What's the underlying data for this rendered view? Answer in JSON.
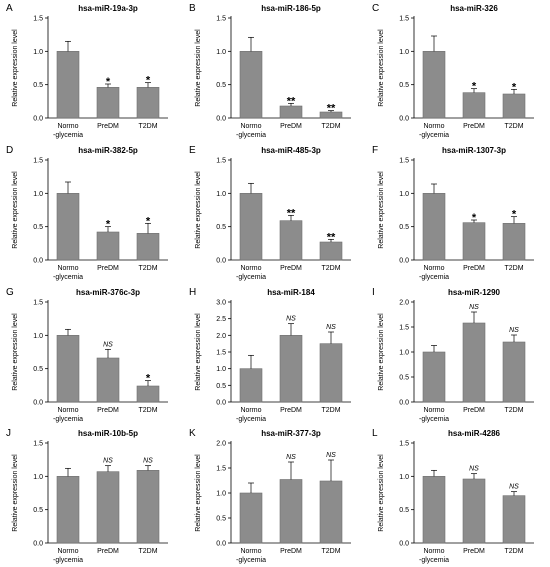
{
  "colors": {
    "bar": "#8c8c8c",
    "bar_stroke": "#6e6e6e",
    "axis": "#000000",
    "text": "#000000"
  },
  "chart_data": [
    {
      "panel": "A",
      "type": "bar",
      "title": "hsa-miR-19a-3p",
      "ylabel": "Relative expression level",
      "ylim": [
        0,
        1.5
      ],
      "yticks": [
        "0.0",
        "0.5",
        "1.0",
        "1.5"
      ],
      "categories": [
        [
          "Normo",
          "-glycemia"
        ],
        [
          "PreDM"
        ],
        [
          "T2DM"
        ]
      ],
      "values": [
        1.0,
        0.46,
        0.46
      ],
      "errors": [
        0.15,
        0.05,
        0.07
      ],
      "annotations": [
        "",
        "*",
        "*"
      ]
    },
    {
      "panel": "B",
      "type": "bar",
      "title": "hsa-miR-186-5p",
      "ylabel": "Relative expression level",
      "ylim": [
        0,
        1.5
      ],
      "yticks": [
        "0.0",
        "0.5",
        "1.0",
        "1.5"
      ],
      "categories": [
        [
          "Normo",
          "-glycemia"
        ],
        [
          "PreDM"
        ],
        [
          "T2DM"
        ]
      ],
      "values": [
        1.0,
        0.18,
        0.09
      ],
      "errors": [
        0.21,
        0.04,
        0.02
      ],
      "annotations": [
        "",
        "**",
        "**"
      ]
    },
    {
      "panel": "C",
      "type": "bar",
      "title": "hsa-miR-326",
      "ylabel": "Relative expression level",
      "ylim": [
        0,
        1.5
      ],
      "yticks": [
        "0.0",
        "0.5",
        "1.0",
        "1.5"
      ],
      "categories": [
        [
          "Normo",
          "-glycemia"
        ],
        [
          "PreDM"
        ],
        [
          "T2DM"
        ]
      ],
      "values": [
        1.0,
        0.38,
        0.36
      ],
      "errors": [
        0.23,
        0.06,
        0.07
      ],
      "annotations": [
        "",
        "*",
        "*"
      ]
    },
    {
      "panel": "D",
      "type": "bar",
      "title": "hsa-miR-382-5p",
      "ylabel": "Relative expression level",
      "ylim": [
        0,
        1.5
      ],
      "yticks": [
        "0.0",
        "0.5",
        "1.0",
        "1.5"
      ],
      "categories": [
        [
          "Normo",
          "-glycemia"
        ],
        [
          "PreDM"
        ],
        [
          "T2DM"
        ]
      ],
      "values": [
        1.0,
        0.42,
        0.4
      ],
      "errors": [
        0.17,
        0.08,
        0.15
      ],
      "annotations": [
        "",
        "*",
        "*"
      ]
    },
    {
      "panel": "E",
      "type": "bar",
      "title": "hsa-miR-485-3p",
      "ylabel": "Relative expression level",
      "ylim": [
        0,
        1.5
      ],
      "yticks": [
        "0.0",
        "0.5",
        "1.0",
        "1.5"
      ],
      "categories": [
        [
          "Normo",
          "-glycemia"
        ],
        [
          "PreDM"
        ],
        [
          "T2DM"
        ]
      ],
      "values": [
        1.0,
        0.59,
        0.27
      ],
      "errors": [
        0.15,
        0.08,
        0.04
      ],
      "annotations": [
        "",
        "**",
        "**"
      ]
    },
    {
      "panel": "F",
      "type": "bar",
      "title": "hsa-miR-1307-3p",
      "ylabel": "Relative expression level",
      "ylim": [
        0,
        1.5
      ],
      "yticks": [
        "0.0",
        "0.5",
        "1.0",
        "1.5"
      ],
      "categories": [
        [
          "Normo",
          "-glycemia"
        ],
        [
          "PreDM"
        ],
        [
          "T2DM"
        ]
      ],
      "values": [
        1.0,
        0.56,
        0.55
      ],
      "errors": [
        0.14,
        0.04,
        0.1
      ],
      "annotations": [
        "",
        "*",
        "*"
      ]
    },
    {
      "panel": "G",
      "type": "bar",
      "title": "hsa-miR-376c-3p",
      "ylabel": "Relative expression level",
      "ylim": [
        0,
        1.5
      ],
      "yticks": [
        "0.0",
        "0.5",
        "1.0",
        "1.5"
      ],
      "categories": [
        [
          "Normo",
          "-glycemia"
        ],
        [
          "PreDM"
        ],
        [
          "T2DM"
        ]
      ],
      "values": [
        1.0,
        0.66,
        0.24
      ],
      "errors": [
        0.09,
        0.13,
        0.08
      ],
      "annotations": [
        "",
        "NS",
        "*"
      ]
    },
    {
      "panel": "H",
      "type": "bar",
      "title": "hsa-miR-184",
      "ylabel": "Relative expression level",
      "ylim": [
        0,
        3.0
      ],
      "yticks": [
        "0.0",
        "0.5",
        "1.0",
        "1.5",
        "2.0",
        "2.5",
        "3.0"
      ],
      "categories": [
        [
          "Normo",
          "-glycemia"
        ],
        [
          "PreDM"
        ],
        [
          "T2DM"
        ]
      ],
      "values": [
        1.0,
        2.0,
        1.75
      ],
      "errors": [
        0.4,
        0.35,
        0.35
      ],
      "annotations": [
        "",
        "NS",
        "NS"
      ]
    },
    {
      "panel": "I",
      "type": "bar",
      "title": "hsa-miR-1290",
      "ylabel": "Relative expression level",
      "ylim": [
        0,
        2.0
      ],
      "yticks": [
        "0.0",
        "0.5",
        "1.0",
        "1.5",
        "2.0"
      ],
      "categories": [
        [
          "Normo",
          "-glycemia"
        ],
        [
          "PreDM"
        ],
        [
          "T2DM"
        ]
      ],
      "values": [
        1.0,
        1.58,
        1.2
      ],
      "errors": [
        0.13,
        0.22,
        0.14
      ],
      "annotations": [
        "",
        "NS",
        "NS"
      ]
    },
    {
      "panel": "J",
      "type": "bar",
      "title": "hsa-miR-10b-5p",
      "ylabel": "Relative expression level",
      "ylim": [
        0,
        1.5
      ],
      "yticks": [
        "0.0",
        "0.5",
        "1.0",
        "1.5"
      ],
      "categories": [
        [
          "Normo",
          "-glycemia"
        ],
        [
          "PreDM"
        ],
        [
          "T2DM"
        ]
      ],
      "values": [
        1.0,
        1.07,
        1.09
      ],
      "errors": [
        0.12,
        0.09,
        0.07
      ],
      "annotations": [
        "",
        "NS",
        "NS"
      ]
    },
    {
      "panel": "K",
      "type": "bar",
      "title": "hsa-miR-377-3p",
      "ylabel": "Relative expression level",
      "ylim": [
        0,
        2.0
      ],
      "yticks": [
        "0.0",
        "0.5",
        "1.0",
        "1.5",
        "2.0"
      ],
      "categories": [
        [
          "Normo",
          "-glycemia"
        ],
        [
          "PreDM"
        ],
        [
          "T2DM"
        ]
      ],
      "values": [
        1.0,
        1.27,
        1.24
      ],
      "errors": [
        0.2,
        0.35,
        0.42
      ],
      "annotations": [
        "",
        "NS",
        "NS"
      ]
    },
    {
      "panel": "L",
      "type": "bar",
      "title": "hsa-miR-4286",
      "ylabel": "Relative expression level",
      "ylim": [
        0,
        1.5
      ],
      "yticks": [
        "0.0",
        "0.5",
        "1.0",
        "1.5"
      ],
      "categories": [
        [
          "Normo",
          "-glycemia"
        ],
        [
          "PreDM"
        ],
        [
          "T2DM"
        ]
      ],
      "values": [
        1.0,
        0.96,
        0.71
      ],
      "errors": [
        0.09,
        0.08,
        0.06
      ],
      "annotations": [
        "",
        "NS",
        "NS"
      ]
    }
  ]
}
